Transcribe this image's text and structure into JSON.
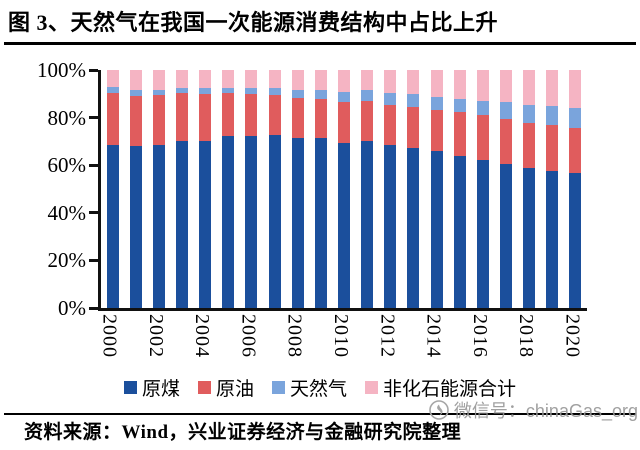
{
  "title": "图 3、天然气在我国一次能源消费结构中占比上升",
  "source": "资料来源：Wind，兴业证券经济与金融研究院整理",
  "watermark": {
    "icon": "wechat-logo-icon",
    "text": "微信号：chinaGas_org",
    "color": "#969696"
  },
  "colors": {
    "coal": "#1B4F9C",
    "oil": "#E05C5D",
    "gas": "#7AA4DC",
    "nonfossil": "#F5B4C3",
    "axis": "#111111"
  },
  "chart_data": {
    "type": "bar",
    "stacked": true,
    "title": "天然气在我国一次能源消费结构中占比上升",
    "xlabel": "",
    "ylabel": "",
    "ylim": [
      0,
      100
    ],
    "grid": false,
    "legend_position": "bottom",
    "y_ticks": [
      "0%",
      "20%",
      "40%",
      "60%",
      "80%",
      "100%"
    ],
    "categories": [
      2000,
      2001,
      2002,
      2003,
      2004,
      2005,
      2006,
      2007,
      2008,
      2009,
      2010,
      2011,
      2012,
      2013,
      2014,
      2015,
      2016,
      2017,
      2018,
      2019,
      2020
    ],
    "x_tick_labels": [
      "2000",
      "2002",
      "2004",
      "2006",
      "2008",
      "2010",
      "2012",
      "2014",
      "2016",
      "2018",
      "2020"
    ],
    "series": [
      {
        "key": "coal",
        "name": "原煤",
        "color": "#1B4F9C",
        "values": [
          68.5,
          68.0,
          68.5,
          70.2,
          70.2,
          72.4,
          72.4,
          72.5,
          71.5,
          71.6,
          69.2,
          70.2,
          68.5,
          67.4,
          65.8,
          63.8,
          62.2,
          60.6,
          59.0,
          57.7,
          56.8
        ]
      },
      {
        "key": "oil",
        "name": "原油",
        "color": "#E05C5D",
        "values": [
          22.0,
          21.2,
          21.0,
          20.1,
          19.9,
          17.8,
          17.5,
          17.0,
          16.7,
          16.4,
          17.4,
          16.8,
          17.0,
          17.1,
          17.3,
          18.4,
          18.7,
          18.9,
          18.9,
          19.0,
          18.9
        ]
      },
      {
        "key": "gas",
        "name": "天然气",
        "color": "#7AA4DC",
        "values": [
          2.2,
          2.4,
          2.3,
          2.3,
          2.3,
          2.4,
          2.7,
          3.0,
          3.4,
          3.5,
          4.0,
          4.6,
          4.8,
          5.3,
          5.6,
          5.8,
          6.1,
          6.9,
          7.6,
          8.0,
          8.4
        ]
      },
      {
        "key": "nonfossil",
        "name": "非化石能源合计",
        "color": "#F5B4C3",
        "values": [
          7.3,
          8.4,
          8.2,
          7.4,
          7.6,
          7.4,
          7.4,
          7.5,
          8.4,
          8.5,
          9.4,
          8.4,
          9.7,
          10.2,
          11.3,
          12.0,
          13.0,
          13.6,
          14.5,
          15.3,
          15.9
        ]
      }
    ]
  }
}
